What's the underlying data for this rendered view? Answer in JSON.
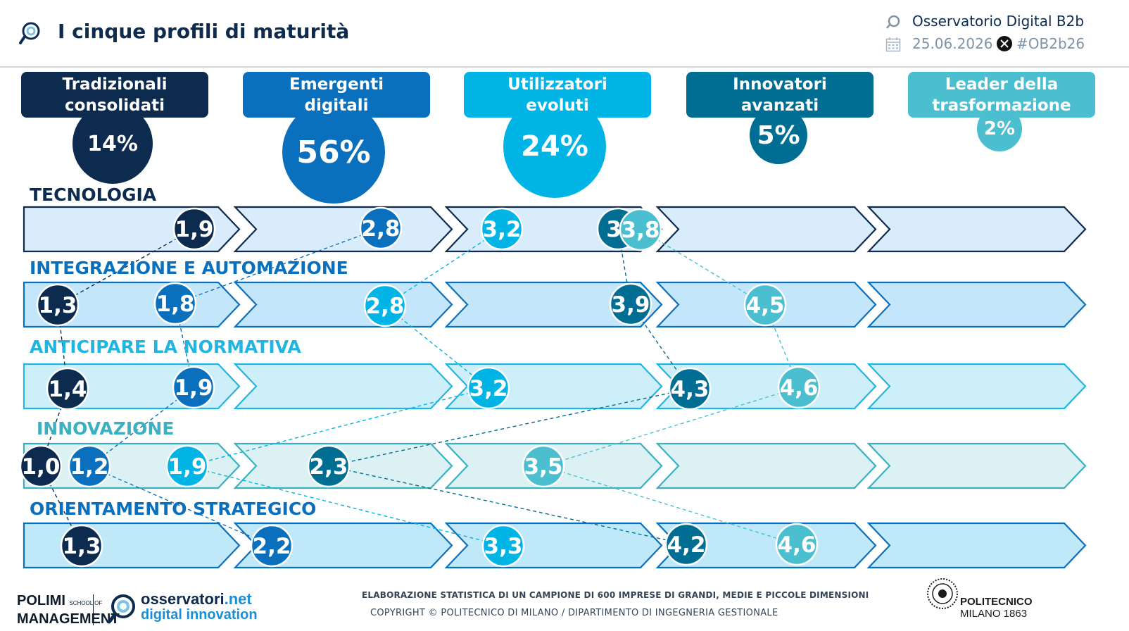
{
  "header": {
    "title": "I cinque profili di maturità",
    "brand": "Osservatorio Digital B2b",
    "date": "25.06.2026",
    "hashtag": "#OB2b26"
  },
  "colors": [
    "#0d2a4f",
    "#0a70bd",
    "#00b4e6",
    "#006e93",
    "#4bbfcf"
  ],
  "profiles": [
    {
      "line1": "Tradizionali",
      "line2": "consolidati",
      "share": "14%"
    },
    {
      "line1": "Emergenti",
      "line2": "digitali",
      "share": "56%"
    },
    {
      "line1": "Utilizzatori",
      "line2": "evoluti",
      "share": "24%"
    },
    {
      "line1": "Innovatori",
      "line2": "avanzati",
      "share": "5%"
    },
    {
      "line1": "Leader della",
      "line2": "trasformazione",
      "share": "2%"
    }
  ],
  "rows": [
    {
      "label": "TECNOLOGIA",
      "values": [
        "1,9",
        "2,8",
        "3,2",
        "3,",
        "3,8"
      ]
    },
    {
      "label": "INTEGRAZIONE E AUTOMAZIONE",
      "values": [
        "1,3",
        "1,8",
        "2,8",
        "3,9",
        "4,5"
      ]
    },
    {
      "label": "ANTICIPARE LA NORMATIVA",
      "values": [
        "1,4",
        "1,9",
        "3,2",
        "4,3",
        "4,6"
      ]
    },
    {
      "label": "INNOVAZIONE",
      "values": [
        "1,0",
        "1,2",
        "1,9",
        "2,3",
        "3,5"
      ]
    },
    {
      "label": "ORIENTAMENTO STRATEGICO",
      "values": [
        "1,3",
        "2,2",
        "3,3",
        "4,2",
        "4,6"
      ]
    }
  ],
  "footer": {
    "note": "ELABORAZIONE STATISTICA DI UN CAMPIONE DI 600 IMPRESE DI GRANDI, MEDIE E PICCOLE DIMENSIONI",
    "copyright": "COPYRIGHT © POLITECNICO DI MILANO / DIPARTIMENTO DI INGEGNERIA GESTIONALE",
    "polimi_line1": "POLIMI",
    "polimi_school": "SCHOOL OF",
    "polimi_line2": "MANAGEMENT",
    "oss_line1": "osservatori",
    "oss_net": ".net",
    "oss_line2": "digital innovation",
    "pm_line1": "POLITECNICO",
    "pm_line2": "MILANO 1863"
  }
}
